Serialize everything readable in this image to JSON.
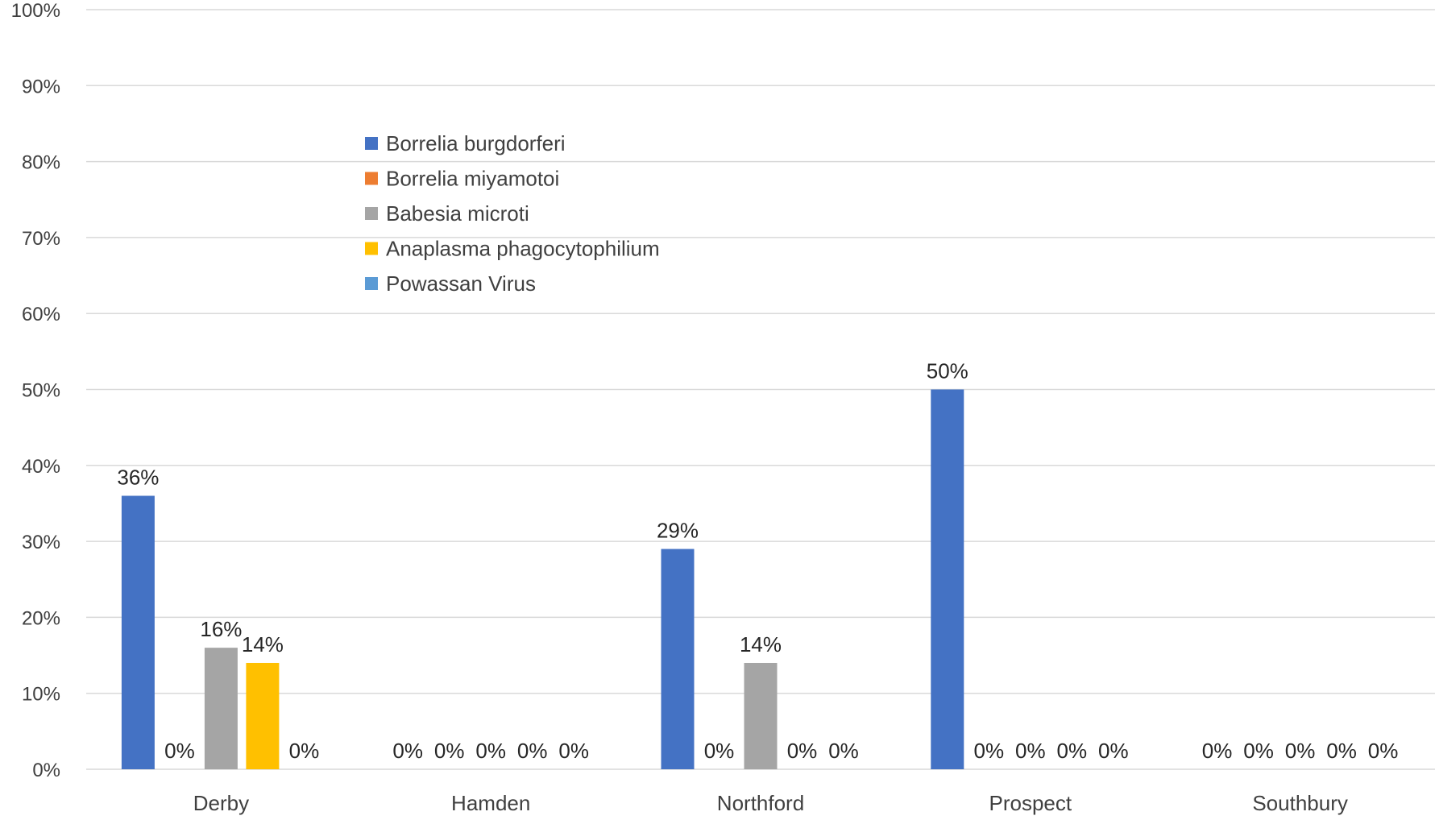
{
  "chart_data": {
    "type": "bar",
    "categories": [
      "Derby",
      "Hamden",
      "Northford",
      "Prospect",
      "Southbury"
    ],
    "series": [
      {
        "name": "Borrelia burgdorferi",
        "color": "#4472C4",
        "values": [
          36,
          0,
          29,
          50,
          0
        ]
      },
      {
        "name": "Borrelia miyamotoi",
        "color": "#ED7D31",
        "values": [
          0,
          0,
          0,
          0,
          0
        ]
      },
      {
        "name": "Babesia microti",
        "color": "#A5A5A5",
        "values": [
          16,
          0,
          14,
          0,
          0
        ]
      },
      {
        "name": "Anaplasma phagocytophilium",
        "color": "#FFC000",
        "values": [
          14,
          0,
          0,
          0,
          0
        ]
      },
      {
        "name": "Powassan Virus",
        "color": "#5B9BD5",
        "values": [
          0,
          0,
          0,
          0,
          0
        ]
      }
    ],
    "value_suffix": "%",
    "ylim": [
      0,
      100
    ],
    "ytick_step": 10,
    "yticks": [
      "0%",
      "10%",
      "20%",
      "30%",
      "40%",
      "50%",
      "60%",
      "70%",
      "80%",
      "90%",
      "100%"
    ],
    "grid": true,
    "legend_position": "upper-left inside plot"
  }
}
